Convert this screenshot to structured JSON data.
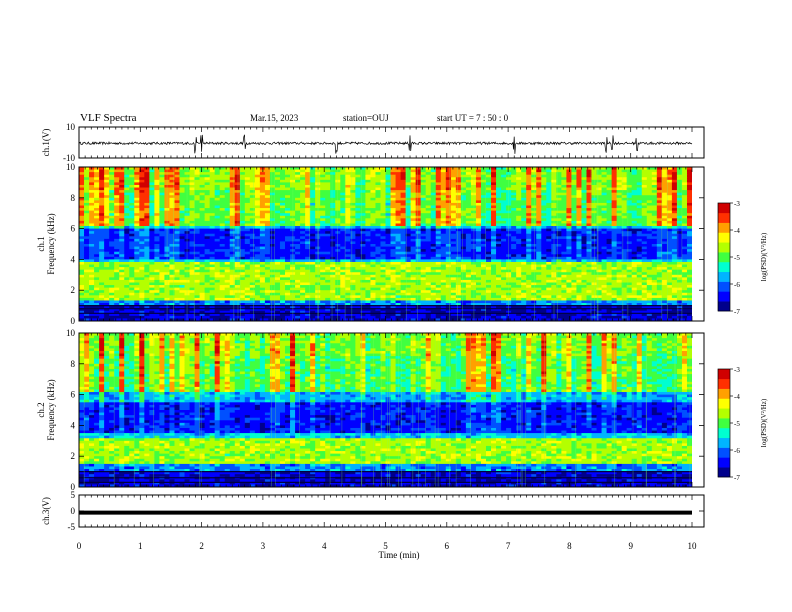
{
  "header": {
    "title": "VLF Spectra",
    "date": "Mar.15, 2023",
    "station": "station=OUJ",
    "start": "start  UT =  7 : 50 : 0"
  },
  "chart_data": [
    {
      "type": "line",
      "panel": "ch1-waveform",
      "ylabel": "ch.1(V)",
      "ylim": [
        -10,
        10
      ],
      "yticks": [
        "10",
        "-10"
      ],
      "xlim": [
        0,
        10
      ],
      "series": [
        {
          "mean": -0.5,
          "noise_amplitude": 0.8,
          "spike_times_min": [
            1.9,
            2.0,
            2.7,
            4.2,
            5.4,
            7.1,
            8.6,
            8.7,
            9.1
          ]
        }
      ],
      "color": "#000000"
    },
    {
      "type": "heatmap",
      "panel": "ch1-spectrogram",
      "ylabel": "ch.1\nFrequency (kHz)",
      "ylim": [
        0,
        10
      ],
      "yticks": [
        "0",
        "2",
        "4",
        "6",
        "8",
        "10"
      ],
      "xlim": [
        0,
        10
      ],
      "bands_kHz": {
        "strong_band": [
          1.3,
          3.8
        ],
        "quiet_band": [
          4.0,
          6.0
        ],
        "low_lines": [
          0.5,
          0.8,
          1.0
        ]
      },
      "colorbar": {
        "label": "log(PSD)(V²/Hz)",
        "range": [
          -7,
          -3
        ],
        "ticks": [
          "-3",
          "-4",
          "-5",
          "-6",
          "-7"
        ]
      }
    },
    {
      "type": "heatmap",
      "panel": "ch2-spectrogram",
      "ylabel": "ch.2\nFrequency (kHz)",
      "ylim": [
        0,
        10
      ],
      "yticks": [
        "0",
        "2",
        "4",
        "6",
        "8",
        "10"
      ],
      "xlim": [
        0,
        10
      ],
      "bands_kHz": {
        "strong_band": [
          1.5,
          3.2
        ],
        "quiet_band": [
          3.5,
          5.5
        ],
        "low_lines": [
          0.3,
          0.6,
          1.0
        ]
      },
      "colorbar": {
        "label": "log(PSD)(V²/Hz)",
        "range": [
          -7,
          -3
        ],
        "ticks": [
          "-3",
          "-4",
          "-5",
          "-6",
          "-7"
        ]
      }
    },
    {
      "type": "line",
      "panel": "ch3-waveform",
      "ylabel": "ch.3(V)",
      "ylim": [
        -5,
        5
      ],
      "yticks": [
        "5",
        "0",
        "-5"
      ],
      "xlim": [
        0,
        10
      ],
      "series": [
        {
          "value": -0.5
        }
      ],
      "color": "#000000"
    }
  ],
  "xaxis": {
    "label": "Time (min)",
    "range": [
      0,
      10
    ],
    "ticks": [
      "0",
      "1",
      "2",
      "3",
      "4",
      "5",
      "6",
      "7",
      "8",
      "9",
      "10"
    ]
  },
  "colormap": [
    "#00008c",
    "#0000ff",
    "#0050ff",
    "#00b4ff",
    "#00ffd0",
    "#40ff40",
    "#b4ff00",
    "#ffff00",
    "#ffa000",
    "#ff3000",
    "#d00000"
  ]
}
